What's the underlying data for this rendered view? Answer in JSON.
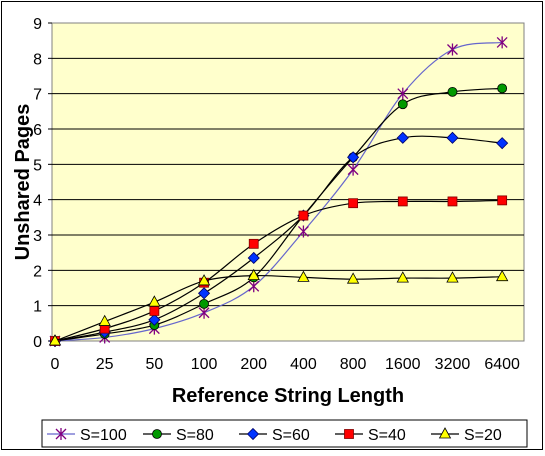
{
  "chart_data": {
    "type": "line",
    "title": "",
    "xlabel": "Reference String Length",
    "ylabel": "Unshared Pages",
    "categories": [
      "0",
      "25",
      "50",
      "100",
      "200",
      "400",
      "800",
      "1600",
      "3200",
      "6400"
    ],
    "ylim": [
      0,
      9
    ],
    "yticks": [
      "0",
      "1",
      "2",
      "3",
      "4",
      "5",
      "6",
      "7",
      "8",
      "9"
    ],
    "grid": true,
    "plot_background": "#ffffcc",
    "legend_position": "bottom",
    "series": [
      {
        "name": "S=100",
        "color": "#800080",
        "marker": "star",
        "values": [
          0,
          0.1,
          0.35,
          0.8,
          1.55,
          3.1,
          4.85,
          7.0,
          8.25,
          8.45
        ]
      },
      {
        "name": "S=80",
        "color": "#006600",
        "marker": "circle",
        "values": [
          0,
          0.2,
          0.45,
          1.05,
          1.8,
          3.55,
          5.2,
          6.7,
          7.05,
          7.15
        ]
      },
      {
        "name": "S=60",
        "color": "#0033ff",
        "marker": "diamond",
        "values": [
          0,
          0.25,
          0.6,
          1.35,
          2.35,
          3.55,
          5.2,
          5.75,
          5.75,
          5.6
        ]
      },
      {
        "name": "S=40",
        "color": "#ff0000",
        "marker": "square",
        "values": [
          0,
          0.35,
          0.85,
          1.65,
          2.75,
          3.55,
          3.9,
          3.95,
          3.95,
          3.98
        ]
      },
      {
        "name": "S=20",
        "color": "#ffff00",
        "marker": "triangle",
        "values": [
          0,
          0.55,
          1.1,
          1.7,
          1.85,
          1.8,
          1.75,
          1.78,
          1.78,
          1.82
        ]
      }
    ]
  }
}
